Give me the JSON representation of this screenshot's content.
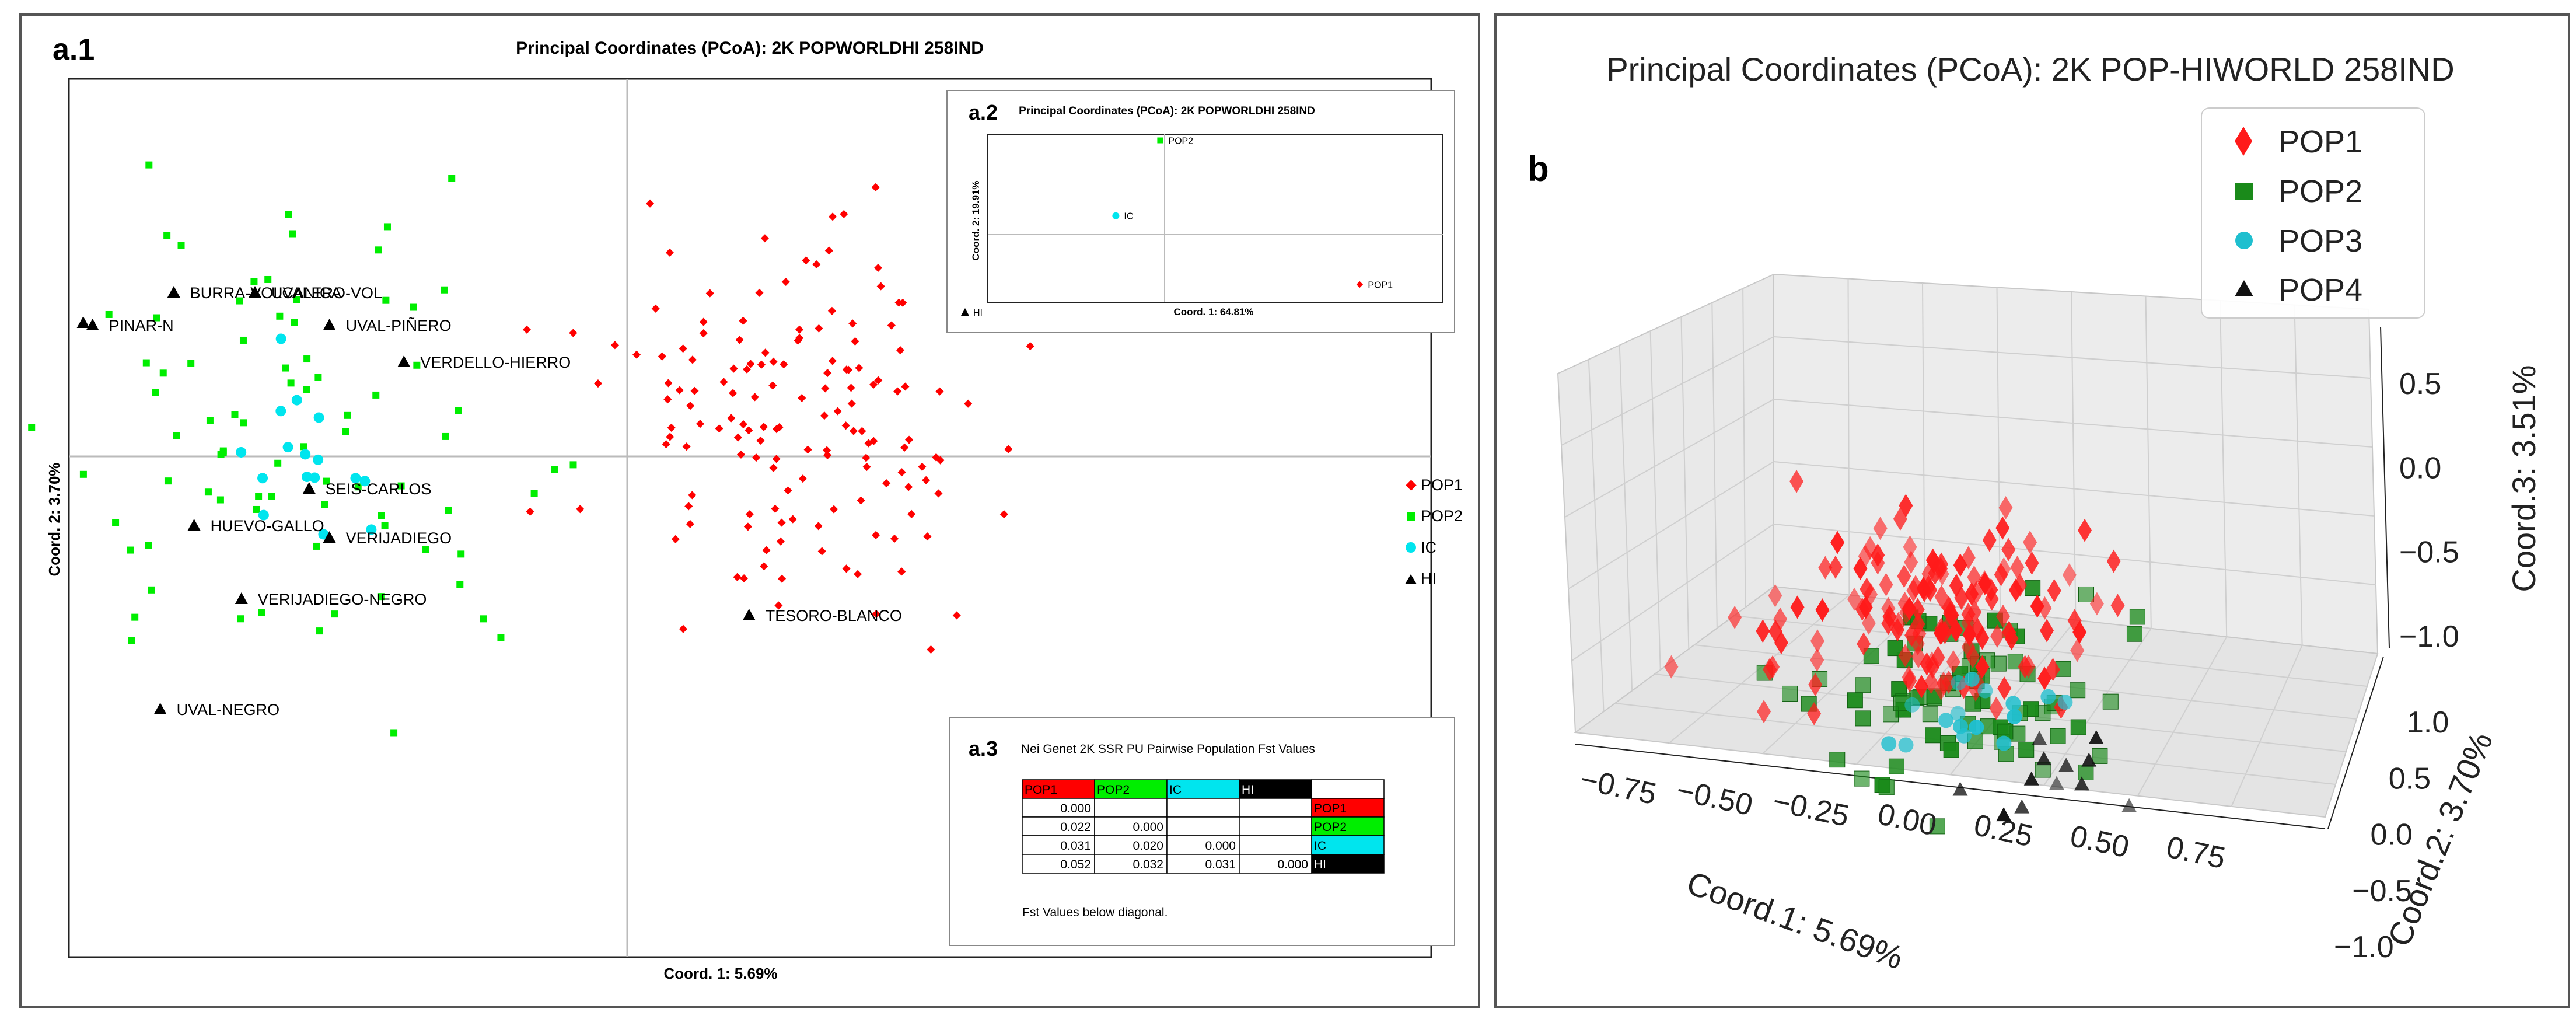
{
  "colors": {
    "pop1": "#ff0000",
    "pop2": "#00ee00",
    "ic": "#00e5ee",
    "hi": "#000000",
    "pop1_3d": "#ff1a1a",
    "pop2_3d": "#1a8a1a",
    "pop3_3d": "#1fbfcf",
    "pop4_3d": "#111111"
  },
  "panel_a1": {
    "label": "a.1",
    "title": "Principal Coordinates (PCoA): 2K POPWORLDHI 258IND",
    "xlabel": "Coord. 1: 5.69%",
    "ylabel": "Coord. 2: 3.70%",
    "legend": [
      "POP1",
      "POP2",
      "IC",
      "HI"
    ]
  },
  "panel_a2": {
    "label": "a.2",
    "title": "Principal Coordinates (PCoA): 2K POPWORLDHI 258IND",
    "xlabel": "Coord. 1: 64.81%",
    "ylabel": "Coord. 2: 19.91%"
  },
  "panel_a3": {
    "label": "a.3",
    "title": "Nei Genet 2K SSR PU Pairwise Population Fst Values",
    "headers": [
      "POP1",
      "POP2",
      "IC",
      "HI"
    ],
    "rows": [
      [
        "0.000",
        "",
        "",
        "",
        "POP1"
      ],
      [
        "0.022",
        "0.000",
        "",
        "",
        "POP2"
      ],
      [
        "0.031",
        "0.020",
        "0.000",
        "",
        "IC"
      ],
      [
        "0.052",
        "0.032",
        "0.031",
        "0.000",
        "HI"
      ]
    ],
    "note": "Fst Values below diagonal."
  },
  "panel_b": {
    "label": "b",
    "title": "Principal Coordinates (PCoA): 2K POP-HIWORLD 258IND",
    "legend": [
      "POP1",
      "POP2",
      "POP3",
      "POP4"
    ],
    "xlabel": "Coord.1: 5.69%",
    "ylabel": "Coord.2: 3.70%",
    "zlabel": "Coord.3: 3.51%"
  },
  "chart_data": [
    {
      "type": "scatter",
      "panel": "a.1",
      "title": "Principal Coordinates (PCoA): 2K POPWORLDHI 258IND",
      "xlabel": "Coord. 1: 5.69%",
      "ylabel": "Coord. 2: 3.70%",
      "xlim": [
        -1,
        1
      ],
      "ylim": [
        -1,
        1
      ],
      "labeled_points": [
        {
          "name": "BURRA-VOLCANICA",
          "x": -0.67,
          "y": 0.4
        },
        {
          "name": "UVALERO-VOL",
          "x": -0.55,
          "y": 0.4
        },
        {
          "name": "PINAR-N",
          "x": -0.79,
          "y": 0.32
        },
        {
          "name": "UVAL-PIÑERO",
          "x": -0.44,
          "y": 0.32
        },
        {
          "name": "VERDELLO-HIERRO",
          "x": -0.33,
          "y": 0.23
        },
        {
          "name": "SEIS-CARLOS",
          "x": -0.47,
          "y": -0.08
        },
        {
          "name": "HUEVO-GALLO",
          "x": -0.64,
          "y": -0.17
        },
        {
          "name": "VERIJADIEGO",
          "x": -0.44,
          "y": -0.2
        },
        {
          "name": "VERIJADIEGO-NEGRO",
          "x": -0.57,
          "y": -0.35
        },
        {
          "name": "TESORO-BLANCO",
          "x": 0.18,
          "y": -0.39
        },
        {
          "name": "UVAL-NEGRO",
          "x": -0.69,
          "y": -0.62
        }
      ],
      "series": [
        {
          "name": "POP1",
          "marker": "diamond",
          "n": 150,
          "center": [
            0.25,
            0.1
          ],
          "spread": [
            0.3,
            0.45
          ]
        },
        {
          "name": "POP2",
          "marker": "square",
          "n": 80,
          "center": [
            -0.45,
            0.0
          ],
          "spread": [
            0.35,
            0.55
          ]
        },
        {
          "name": "IC",
          "marker": "circle",
          "n": 16,
          "center": [
            -0.48,
            0.0
          ],
          "spread": [
            0.12,
            0.25
          ]
        }
      ]
    },
    {
      "type": "scatter",
      "panel": "a.2",
      "title": "Principal Coordinates (PCoA): 2K POPWORLDHI 258IND",
      "xlabel": "Coord. 1: 64.81%",
      "ylabel": "Coord. 2: 19.91%",
      "points": [
        {
          "name": "POP2",
          "x": -0.02,
          "y": 0.85
        },
        {
          "name": "IC",
          "x": -0.22,
          "y": 0.17
        },
        {
          "name": "POP1",
          "x": 0.88,
          "y": -0.45
        },
        {
          "name": "HI",
          "x": -0.9,
          "y": -0.7
        }
      ]
    },
    {
      "type": "table",
      "panel": "a.3",
      "title": "Nei Genet 2K SSR PU Pairwise Population Fst Values",
      "columns": [
        "POP1",
        "POP2",
        "IC",
        "HI"
      ],
      "values": [
        [
          0.0,
          null,
          null,
          null
        ],
        [
          0.022,
          0.0,
          null,
          null
        ],
        [
          0.031,
          0.02,
          0.0,
          null
        ],
        [
          0.052,
          0.032,
          0.031,
          0.0
        ]
      ]
    },
    {
      "type": "scatter",
      "panel": "b",
      "dimensions": 3,
      "title": "Principal Coordinates (PCoA): 2K POP-HIWORLD 258IND",
      "xlabel": "Coord.1: 5.69%",
      "ylabel": "Coord.2: 3.70%",
      "zlabel": "Coord.3: 3.51%",
      "x_ticks": [
        "−0.75",
        "−0.50",
        "−0.25",
        "0.00",
        "0.25",
        "0.50",
        "0.75"
      ],
      "y_ticks": [
        "−1.0",
        "−0.5",
        "0.0",
        "0.5",
        "1.0"
      ],
      "z_ticks": [
        "−1.0",
        "−0.5",
        "0.0",
        "0.5"
      ],
      "legend": [
        "POP1",
        "POP2",
        "POP3",
        "POP4"
      ],
      "series": [
        {
          "name": "POP1",
          "marker": "diamond",
          "n": 150
        },
        {
          "name": "POP2",
          "marker": "square",
          "n": 80
        },
        {
          "name": "POP3",
          "marker": "circle",
          "n": 16
        },
        {
          "name": "POP4",
          "marker": "triangle",
          "n": 12
        }
      ]
    }
  ]
}
